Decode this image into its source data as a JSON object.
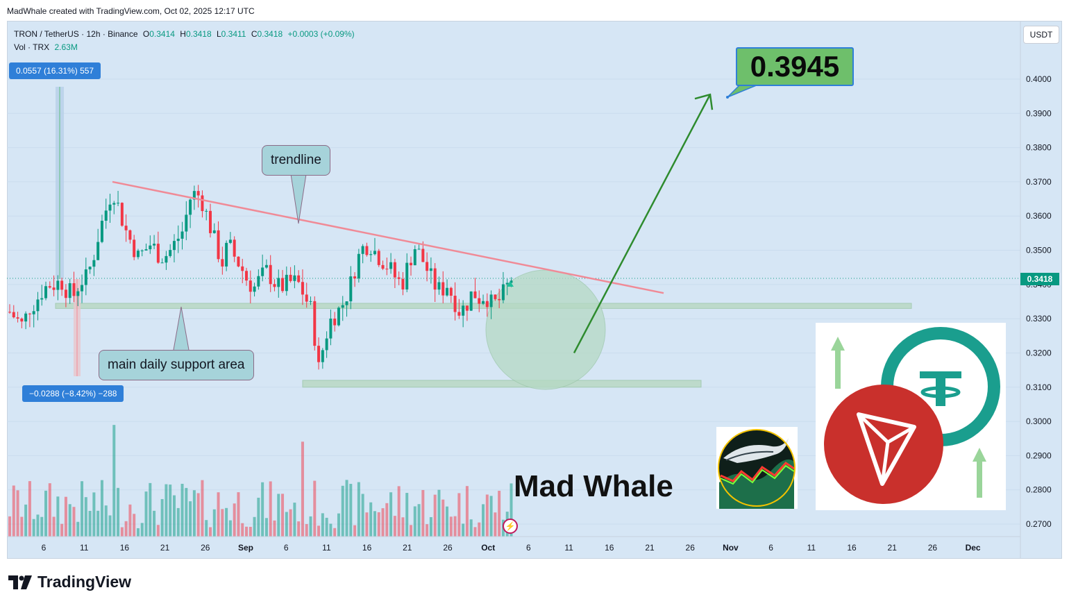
{
  "header": {
    "creator_line": "MadWhale created with TradingView.com, Oct 02, 2025 12:17 UTC"
  },
  "legend": {
    "symbol": "TRON / TetherUS · 12h · Binance",
    "open_label": "O",
    "open": "0.3414",
    "high_label": "H",
    "high": "0.3418",
    "low_label": "L",
    "low": "0.3411",
    "close_label": "C",
    "close": "0.3418",
    "change": "+0.0003 (+0.09%)",
    "vol_label": "Vol · TRX",
    "vol_value": "2.63M"
  },
  "currency_button": "USDT",
  "current_price_tag": "0.3418",
  "measurements": {
    "up": "0.0557 (16.31%) 557",
    "down": "−0.0288 (−8.42%) −288"
  },
  "callouts": {
    "trendline": "trendline",
    "support": "main daily support area"
  },
  "target_label": "0.3945",
  "brand_text": "Mad Whale",
  "footer_logo": "TradingView",
  "logos": [
    "whale-logo",
    "tether-logo",
    "tron-logo"
  ],
  "colors": {
    "up": "#089981",
    "down": "#f23645",
    "trendline": "#f08a96",
    "arrow": "#2e8b2e",
    "target_bg": "#6ebf6b",
    "chart_bg": "#d6e6f5"
  },
  "chart_data": {
    "type": "candlestick",
    "symbol": "TRON / TetherUS",
    "interval": "12h",
    "ylim": [
      0.265,
      0.416
    ],
    "y_ticks": [
      0.27,
      0.28,
      0.29,
      0.3,
      0.31,
      0.32,
      0.33,
      0.34,
      0.35,
      0.36,
      0.37,
      0.38,
      0.39,
      0.4
    ],
    "y_tick_labels": [
      "0.2700",
      "0.2800",
      "0.2900",
      "0.3000",
      "0.3100",
      "0.3200",
      "0.3300",
      "0.3400",
      "0.3500",
      "0.3600",
      "0.3700",
      "0.3800",
      "0.3900",
      "0.4000"
    ],
    "x_tick_labels": [
      "6",
      "11",
      "16",
      "21",
      "26",
      "Sep",
      "6",
      "11",
      "16",
      "21",
      "26",
      "Oct",
      "6",
      "11",
      "16",
      "21",
      "26",
      "Nov",
      "6",
      "11",
      "16",
      "21",
      "26",
      "Dec"
    ],
    "current_price": 0.3418,
    "price_path": [
      0.332,
      0.33,
      0.328,
      0.333,
      0.335,
      0.338,
      0.34,
      0.34,
      0.341,
      0.338,
      0.337,
      0.341,
      0.342,
      0.348,
      0.356,
      0.362,
      0.368,
      0.362,
      0.356,
      0.352,
      0.348,
      0.35,
      0.352,
      0.349,
      0.348,
      0.35,
      0.353,
      0.356,
      0.365,
      0.367,
      0.364,
      0.358,
      0.352,
      0.346,
      0.352,
      0.348,
      0.345,
      0.341,
      0.339,
      0.342,
      0.344,
      0.341,
      0.339,
      0.34,
      0.341,
      0.34,
      0.336,
      0.332,
      0.315,
      0.324,
      0.33,
      0.332,
      0.335,
      0.34,
      0.347,
      0.351,
      0.352,
      0.349,
      0.347,
      0.345,
      0.342,
      0.34,
      0.346,
      0.351,
      0.348,
      0.344,
      0.34,
      0.338,
      0.34,
      0.336,
      0.332,
      0.334,
      0.338,
      0.336,
      0.337,
      0.334,
      0.335,
      0.338,
      0.3418
    ],
    "trendline": {
      "from": [
        "Aug 14",
        0.37
      ],
      "to": [
        "Oct 21",
        0.3375
      ]
    },
    "support_zone": [
      0.333,
      0.3345
    ],
    "lower_zone": [
      0.31,
      0.312
    ],
    "projection": {
      "from": 0.32,
      "to": 0.3945,
      "target_label": "0.3945"
    },
    "volume": {
      "label": "Vol · TRX",
      "last": "2.63M"
    }
  }
}
